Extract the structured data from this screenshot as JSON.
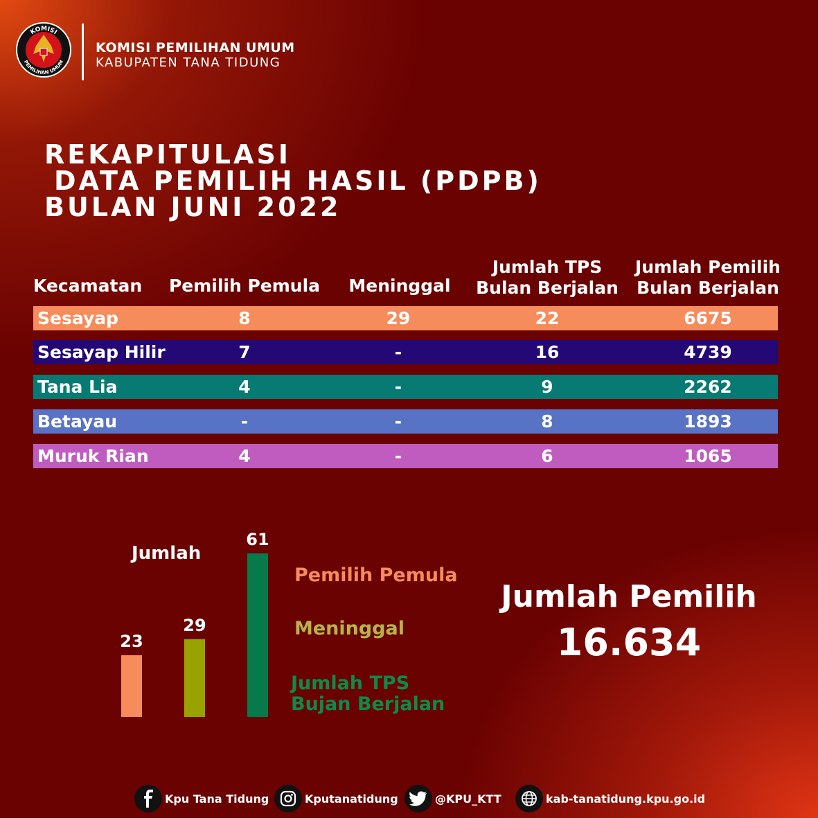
{
  "header": {
    "logo_text_top": "KOMISI",
    "logo_text_bottom": "PEMILIHAN UMUM",
    "org_line1": "KOMISI PEMILIHAN UMUM",
    "org_line2": "KABUPATEN TANA TIDUNG"
  },
  "title": {
    "line1": "REKAPITULASI",
    "line2": "DATA PEMILIH HASIL (PDPB)",
    "line3": "BULAN JUNI 2022"
  },
  "table": {
    "headers": {
      "kecamatan": "Kecamatan",
      "pemula": "Pemilih Pemula",
      "meninggal": "Meninggal",
      "tps_line1": "Jumlah TPS",
      "tps_line2": "Bulan Berjalan",
      "pemilih_line1": "Jumlah Pemilih",
      "pemilih_line2": "Bulan Berjalan"
    },
    "rows": [
      {
        "name": "Sesayap",
        "pemula": "8",
        "meninggal": "29",
        "tps": "22",
        "pemilih": "6675",
        "color": "#f68b5b"
      },
      {
        "name": "Sesayap Hilir",
        "pemula": "7",
        "meninggal": "-",
        "tps": "16",
        "pemilih": "4739",
        "color": "#240876"
      },
      {
        "name": "Tana Lia",
        "pemula": "4",
        "meninggal": "-",
        "tps": "9",
        "pemilih": "2262",
        "color": "#067a73"
      },
      {
        "name": "Betayau",
        "pemula": "-",
        "meninggal": "-",
        "tps": "8",
        "pemilih": "1893",
        "color": "#5872c6"
      },
      {
        "name": "Muruk Rian",
        "pemula": "4",
        "meninggal": "-",
        "tps": "6",
        "pemilih": "1065",
        "color": "#c05cbf"
      }
    ]
  },
  "chart_data": {
    "type": "bar",
    "title": "Jumlah",
    "categories": [
      "Pemilih Pemula",
      "Meninggal",
      "Jumlah TPS Bujan Berjalan"
    ],
    "values": [
      23,
      29,
      61
    ],
    "value_labels": [
      "23",
      "29",
      "61"
    ],
    "colors": [
      "#f68b5b",
      "#99a300",
      "#067a4a"
    ],
    "ylim": [
      0,
      61
    ],
    "grid": false,
    "legend": [
      "Pemilih Pemula",
      "Meninggal",
      "Jumlah TPS",
      "Bujan Berjalan"
    ],
    "legend_colors": [
      "#f68b5b",
      "#b6b34d",
      "#0d8a4a",
      "#0d8a4a"
    ]
  },
  "total": {
    "label": "Jumlah Pemilih",
    "value": "16.634"
  },
  "footer": {
    "facebook": "Kpu Tana Tidung",
    "instagram": "Kputanatidung",
    "twitter": "@KPU_KTT",
    "website": "kab-tanatidung.kpu.go.id"
  }
}
